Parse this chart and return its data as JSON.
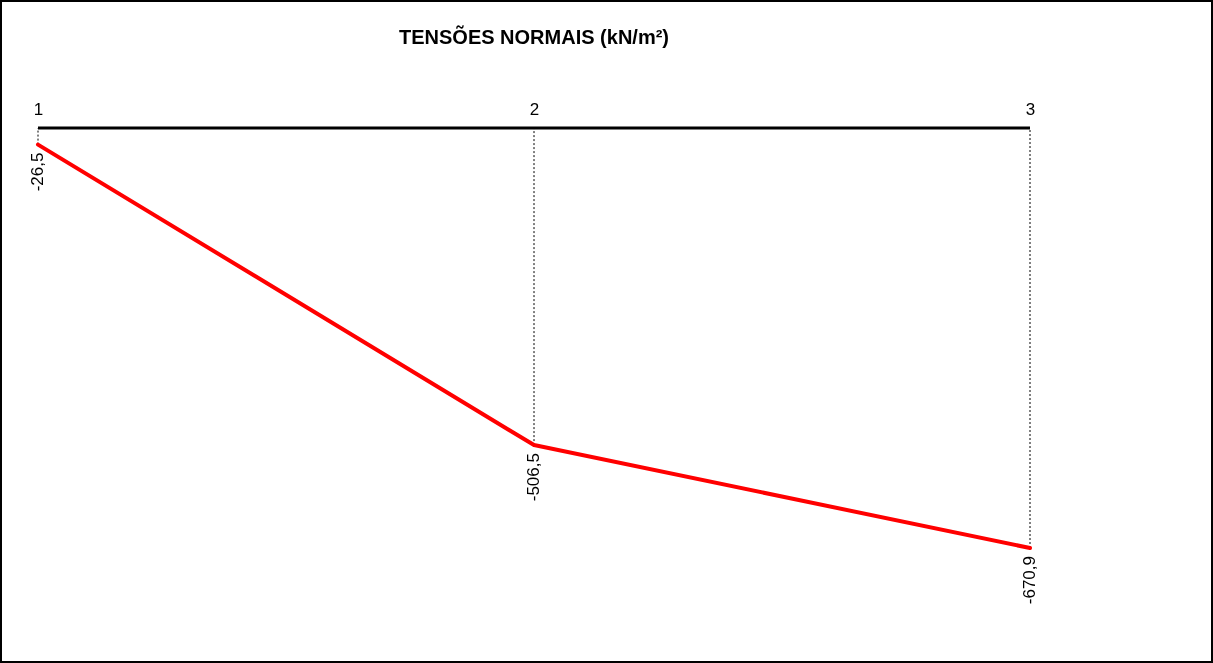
{
  "chart_data": {
    "type": "line",
    "title": "TENSÕES NORMAIS (kN/m²)",
    "categories": [
      "1",
      "2",
      "3"
    ],
    "values": [
      -26.5,
      -506.5,
      -670.9
    ],
    "value_labels": [
      "-26,5",
      "-506,5",
      "-670,9"
    ],
    "color": "#ff0000",
    "tick_labels": "x"
  }
}
